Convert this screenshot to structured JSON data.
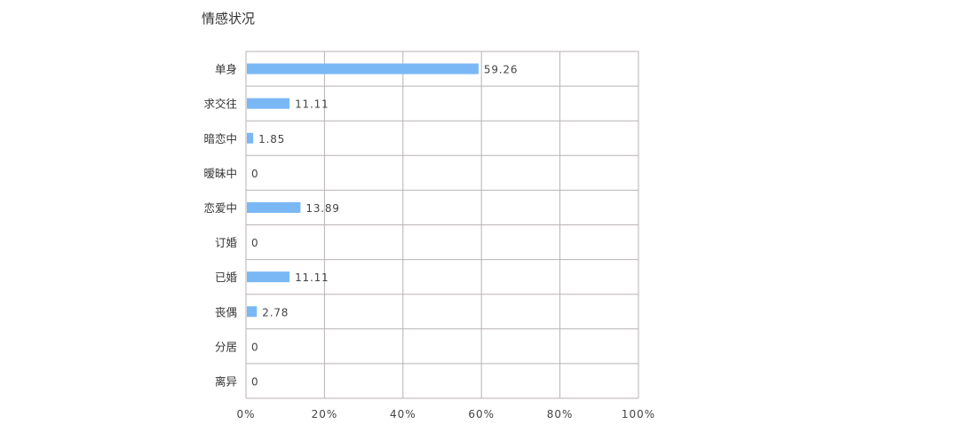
{
  "chart_data": {
    "type": "bar",
    "orientation": "horizontal",
    "title": "情感状况",
    "categories": [
      "单身",
      "求交往",
      "暗恋中",
      "暧昧中",
      "恋爱中",
      "订婚",
      "已婚",
      "丧偶",
      "分居",
      "离异"
    ],
    "values": [
      59.26,
      11.11,
      1.85,
      0,
      13.89,
      0,
      11.11,
      2.78,
      0,
      0
    ],
    "value_labels": [
      "59.26",
      "11.11",
      "1.85",
      "0",
      "13.89",
      "0",
      "11.11",
      "2.78",
      "0",
      "0"
    ],
    "xlim": [
      0,
      100
    ],
    "x_ticks": [
      "0%",
      "20%",
      "40%",
      "60%",
      "80%",
      "100%"
    ],
    "xlabel": "",
    "ylabel": "",
    "grid": true,
    "bar_color": "#7ab8f5",
    "grid_color": "#b8b2b4"
  }
}
